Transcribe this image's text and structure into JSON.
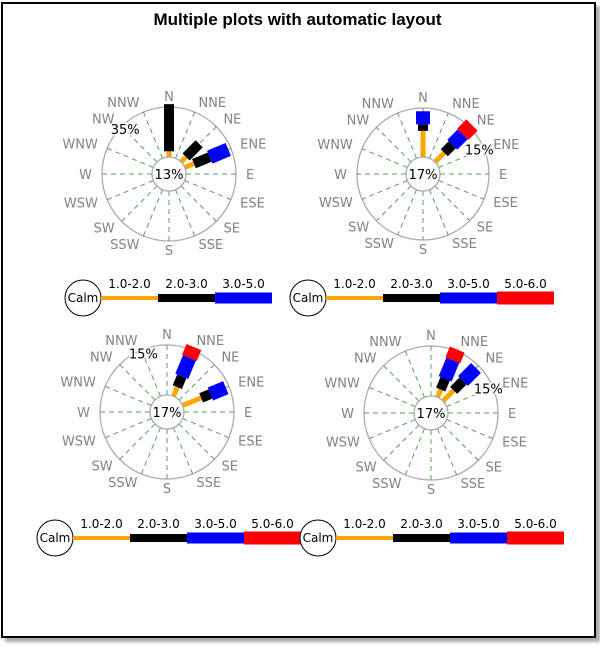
{
  "title": "Multiple plots with automatic layout",
  "legend_calm_label": "Calm",
  "colors": {
    "background": "#FFFFFF",
    "frame_border": "#000000",
    "spoke_green": "#5AA05A",
    "ring_gray": "#ABABAB",
    "compass_label_gray": "#828282",
    "text_black": "#000000"
  },
  "speed_bins": [
    {
      "label": "1.0-2.0",
      "color": "#FFA500"
    },
    {
      "label": "2.0-3.0",
      "color": "#000000"
    },
    {
      "label": "3.0-5.0",
      "color": "#0000FF"
    },
    {
      "label": "5.0-6.0",
      "color": "#FF0000"
    }
  ],
  "compass_directions": [
    "N",
    "NNE",
    "NE",
    "ENE",
    "E",
    "ESE",
    "SE",
    "SSE",
    "S",
    "SSW",
    "SW",
    "WSW",
    "W",
    "WNW",
    "NW",
    "NNW"
  ],
  "chart_data": [
    {
      "type": "windrose",
      "calm_center_label": "13%",
      "ring_label": {
        "text": "35%",
        "direction": "NW"
      },
      "scale_max_pct": 35,
      "petals": [
        {
          "direction": "N",
          "segments": [
            {
              "bin": "1.0-2.0",
              "pct": 4
            },
            {
              "bin": "2.0-3.0",
              "pct": 33
            }
          ]
        },
        {
          "direction": "NE",
          "segments": [
            {
              "bin": "1.0-2.0",
              "pct": 5
            },
            {
              "bin": "2.0-3.0",
              "pct": 13
            }
          ]
        },
        {
          "direction": "ENE",
          "segments": [
            {
              "bin": "1.0-2.0",
              "pct": 7
            },
            {
              "bin": "2.0-3.0",
              "pct": 12
            },
            {
              "bin": "3.0-5.0",
              "pct": 14
            }
          ]
        }
      ],
      "legend_bins": [
        "1.0-2.0",
        "2.0-3.0",
        "3.0-5.0"
      ]
    },
    {
      "type": "windrose",
      "calm_center_label": "17%",
      "ring_label": {
        "text": "15%",
        "direction": "ENE"
      },
      "scale_max_pct": 15,
      "petals": [
        {
          "direction": "N",
          "segments": [
            {
              "bin": "1.0-2.0",
              "pct": 8
            },
            {
              "bin": "2.0-3.0",
              "pct": 2
            },
            {
              "bin": "3.0-5.0",
              "pct": 4
            }
          ]
        },
        {
          "direction": "NE",
          "segments": [
            {
              "bin": "1.0-2.0",
              "pct": 4
            },
            {
              "bin": "2.0-3.0",
              "pct": 3.5
            },
            {
              "bin": "3.0-5.0",
              "pct": 4.5
            },
            {
              "bin": "5.0-6.0",
              "pct": 4
            }
          ]
        }
      ],
      "legend_bins": [
        "1.0-2.0",
        "2.0-3.0",
        "3.0-5.0",
        "5.0-6.0"
      ]
    },
    {
      "type": "windrose",
      "calm_center_label": "17%",
      "ring_label": {
        "text": "15%",
        "direction": "NNW"
      },
      "scale_max_pct": 15,
      "petals": [
        {
          "direction": "NNE",
          "segments": [
            {
              "bin": "1.0-2.0",
              "pct": 3
            },
            {
              "bin": "2.0-3.0",
              "pct": 3.5
            },
            {
              "bin": "3.0-5.0",
              "pct": 6
            },
            {
              "bin": "5.0-6.0",
              "pct": 3.5
            }
          ]
        },
        {
          "direction": "ENE",
          "segments": [
            {
              "bin": "1.0-2.0",
              "pct": 6
            },
            {
              "bin": "2.0-3.0",
              "pct": 3
            },
            {
              "bin": "3.0-5.0",
              "pct": 5
            }
          ]
        }
      ],
      "legend_bins": [
        "1.0-2.0",
        "2.0-3.0",
        "3.0-5.0",
        "5.0-6.0"
      ]
    },
    {
      "type": "windrose",
      "calm_center_label": "17%",
      "ring_label": {
        "text": "15%",
        "direction": "ENE"
      },
      "scale_max_pct": 15,
      "petals": [
        {
          "direction": "NNE",
          "segments": [
            {
              "bin": "1.0-2.0",
              "pct": 2.5
            },
            {
              "bin": "2.0-3.0",
              "pct": 3.5
            },
            {
              "bin": "3.0-5.0",
              "pct": 6
            },
            {
              "bin": "5.0-6.0",
              "pct": 3.5
            }
          ]
        },
        {
          "direction": "NE",
          "segments": [
            {
              "bin": "1.0-2.0",
              "pct": 4.5
            },
            {
              "bin": "2.0-3.0",
              "pct": 4
            },
            {
              "bin": "3.0-5.0",
              "pct": 5.5
            }
          ]
        }
      ],
      "legend_bins": [
        "1.0-2.0",
        "2.0-3.0",
        "3.0-5.0",
        "5.0-6.0"
      ]
    }
  ]
}
